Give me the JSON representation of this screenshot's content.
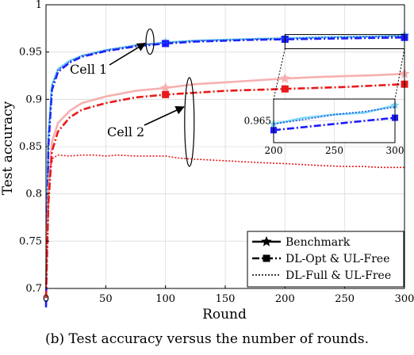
{
  "caption": "(b) Test accuracy versus the number of rounds.",
  "chart_data": {
    "type": "line",
    "xlabel": "Round",
    "ylabel": "Test accuracy",
    "xlim": [
      0,
      300
    ],
    "ylim": [
      0.7,
      1.0
    ],
    "xticks": [
      0,
      50,
      100,
      150,
      200,
      250,
      300
    ],
    "yticks": [
      0.7,
      0.75,
      0.8,
      0.85,
      0.9,
      0.95,
      1
    ],
    "ytick_labels": [
      "0.7",
      "0.75",
      "0.8",
      "0.85",
      "0.9",
      "0.95",
      "1"
    ],
    "grid": true,
    "legend_position": "bottom-right",
    "legend": [
      {
        "label": "Benchmark",
        "style": "solid-star"
      },
      {
        "label": "DL-Opt & UL-Free",
        "style": "dashdot-square"
      },
      {
        "label": "DL-Full & UL-Free",
        "style": "dotted"
      }
    ],
    "annotations": [
      {
        "text": "Cell 1",
        "target_x": 87,
        "target_y": 0.961
      },
      {
        "text": "Cell 2",
        "target_x": 120,
        "target_y": 0.876
      }
    ],
    "series": [
      {
        "cell": "Cell 1",
        "style": "Benchmark",
        "color": "#7fd8f5",
        "x": [
          0,
          2,
          5,
          10,
          20,
          30,
          50,
          75,
          100,
          125,
          150,
          175,
          200,
          225,
          250,
          275,
          300
        ],
        "y": [
          0.7,
          0.86,
          0.915,
          0.932,
          0.941,
          0.946,
          0.952,
          0.957,
          0.96,
          0.962,
          0.963,
          0.964,
          0.9645,
          0.9655,
          0.966,
          0.9663,
          0.9675
        ]
      },
      {
        "cell": "Cell 1",
        "style": "DL-Opt & UL-Free",
        "color": "#1a1aff",
        "x": [
          0,
          2,
          5,
          10,
          20,
          30,
          50,
          75,
          100,
          125,
          150,
          175,
          200,
          225,
          250,
          275,
          300
        ],
        "y": [
          0.68,
          0.85,
          0.91,
          0.929,
          0.939,
          0.945,
          0.951,
          0.956,
          0.959,
          0.961,
          0.962,
          0.963,
          0.9635,
          0.964,
          0.9645,
          0.965,
          0.9655
        ]
      },
      {
        "cell": "Cell 1",
        "style": "DL-Full & UL-Free",
        "color": "#2255dd",
        "x": [
          0,
          2,
          5,
          10,
          20,
          30,
          50,
          75,
          100,
          125,
          150,
          175,
          200,
          225,
          250,
          275,
          300
        ],
        "y": [
          0.7,
          0.86,
          0.914,
          0.931,
          0.94,
          0.946,
          0.952,
          0.957,
          0.96,
          0.962,
          0.9628,
          0.9638,
          0.9645,
          0.9652,
          0.966,
          0.9665,
          0.9672
        ]
      },
      {
        "cell": "Cell 2",
        "style": "Benchmark",
        "color": "#f7b0b0",
        "x": [
          0,
          2,
          5,
          10,
          20,
          30,
          50,
          75,
          100,
          125,
          150,
          175,
          200,
          225,
          250,
          275,
          300
        ],
        "y": [
          0.7,
          0.8,
          0.855,
          0.875,
          0.888,
          0.896,
          0.903,
          0.909,
          0.912,
          0.916,
          0.918,
          0.92,
          0.922,
          0.9235,
          0.9245,
          0.9255,
          0.927
        ]
      },
      {
        "cell": "Cell 2",
        "style": "DL-Opt & UL-Free",
        "color": "#e8191a",
        "x": [
          0,
          2,
          5,
          10,
          20,
          30,
          50,
          75,
          100,
          125,
          150,
          175,
          200,
          225,
          250,
          275,
          300
        ],
        "y": [
          0.69,
          0.79,
          0.845,
          0.866,
          0.881,
          0.889,
          0.896,
          0.902,
          0.905,
          0.907,
          0.909,
          0.91,
          0.911,
          0.912,
          0.913,
          0.9145,
          0.916
        ]
      },
      {
        "cell": "Cell 2",
        "style": "DL-Full & UL-Free",
        "color": "#e8191a",
        "x": [
          0,
          2,
          4,
          6,
          10,
          20,
          30,
          40,
          50,
          60,
          75,
          90,
          100,
          110,
          120,
          135,
          150,
          165,
          180,
          200,
          215,
          230,
          250,
          265,
          280,
          300
        ],
        "y": [
          0.7,
          0.79,
          0.83,
          0.838,
          0.841,
          0.84,
          0.841,
          0.841,
          0.84,
          0.841,
          0.84,
          0.84,
          0.84,
          0.838,
          0.837,
          0.836,
          0.835,
          0.834,
          0.833,
          0.832,
          0.831,
          0.83,
          0.829,
          0.829,
          0.828,
          0.828
        ]
      }
    ],
    "inset": {
      "xlim": [
        200,
        300
      ],
      "xticks": [
        200,
        250,
        300
      ],
      "ytick_labels": [
        "0.965"
      ],
      "ytick_value": 0.965,
      "ylim": [
        0.9615,
        0.9685
      ],
      "series": [
        {
          "style": "Benchmark",
          "color": "#7fd8f5",
          "x": [
            200,
            225,
            250,
            275,
            300
          ],
          "y": [
            0.9645,
            0.9655,
            0.966,
            0.9663,
            0.9675
          ]
        },
        {
          "style": "DL-Opt & UL-Free",
          "color": "#1a1aff",
          "x": [
            200,
            225,
            250,
            275,
            300
          ],
          "y": [
            0.9635,
            0.964,
            0.9645,
            0.965,
            0.9655
          ]
        },
        {
          "style": "DL-Full & UL-Free",
          "color": "#2255dd",
          "x": [
            200,
            225,
            250,
            275,
            300
          ],
          "y": [
            0.9645,
            0.9652,
            0.966,
            0.9665,
            0.9672
          ]
        }
      ]
    }
  }
}
